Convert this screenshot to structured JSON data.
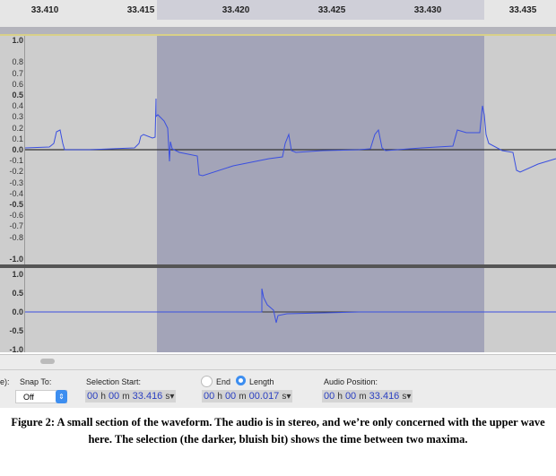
{
  "ruler": {
    "ticks": [
      "33.410",
      "33.415",
      "33.420",
      "33.425",
      "33.430",
      "33.435"
    ]
  },
  "track1": {
    "labels": [
      "1.0",
      "0.8",
      "0.7",
      "0.6",
      "0.5",
      "0.4",
      "0.3",
      "0.2",
      "0.1",
      "0.0",
      "-0.1",
      "-0.2",
      "-0.3",
      "-0.4",
      "-0.5",
      "-0.6",
      "-0.7",
      "-0.8",
      "-1.0"
    ]
  },
  "track2": {
    "labels": [
      "1.0",
      "0.5",
      "0.0",
      "-0.5",
      "-1.0"
    ]
  },
  "colors": {
    "waveform": "#3a4fe0",
    "selection": "#a3a4b8",
    "background": "#cdcdcd"
  },
  "toolbar": {
    "partial_label": "e):",
    "snap_to_label": "Snap To:",
    "snap_to_value": "Off",
    "selection_start_label": "Selection Start:",
    "selection_start": {
      "h": "00",
      "m": "00",
      "s": "33.416"
    },
    "end_label": "End",
    "length_label": "Length",
    "length_selected": true,
    "length": {
      "h": "00",
      "m": "00",
      "s": "00.017"
    },
    "audio_position_label": "Audio Position:",
    "audio_position": {
      "h": "00",
      "m": "00",
      "s": "33.416"
    },
    "units": {
      "h": "h",
      "m": "m",
      "s": "s"
    }
  },
  "caption": "Figure 2: A small section of the waveform. The audio is in stereo, and we’re only concerned with the upper wave here. The selection (the darker, bluish bit) shows the time between two maxima."
}
